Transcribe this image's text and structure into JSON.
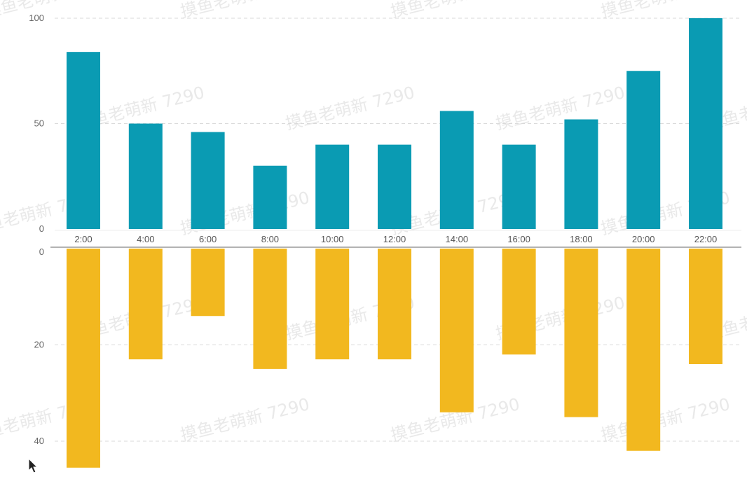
{
  "chart_data": [
    {
      "type": "bar",
      "categories": [
        "2:00",
        "4:00",
        "6:00",
        "8:00",
        "10:00",
        "12:00",
        "14:00",
        "16:00",
        "18:00",
        "20:00",
        "22:00"
      ],
      "values": [
        84,
        50,
        46,
        30,
        40,
        40,
        56,
        40,
        52,
        75,
        100
      ],
      "ylim": [
        0,
        100
      ],
      "yticks": [
        "0",
        "50",
        "100"
      ],
      "color": "#0a9bb3",
      "grid": true
    },
    {
      "type": "bar",
      "categories": [
        "2:00",
        "4:00",
        "6:00",
        "8:00",
        "10:00",
        "12:00",
        "14:00",
        "16:00",
        "18:00",
        "20:00",
        "22:00"
      ],
      "values": [
        45.5,
        23,
        14,
        25,
        23,
        23,
        34,
        22,
        35,
        42,
        24
      ],
      "ylim": [
        0,
        45
      ],
      "inverted": true,
      "yticks": [
        "0",
        "20",
        "40"
      ],
      "color": "#f2b81f",
      "grid": true
    }
  ],
  "watermark": "摸鱼老萌新 7290"
}
